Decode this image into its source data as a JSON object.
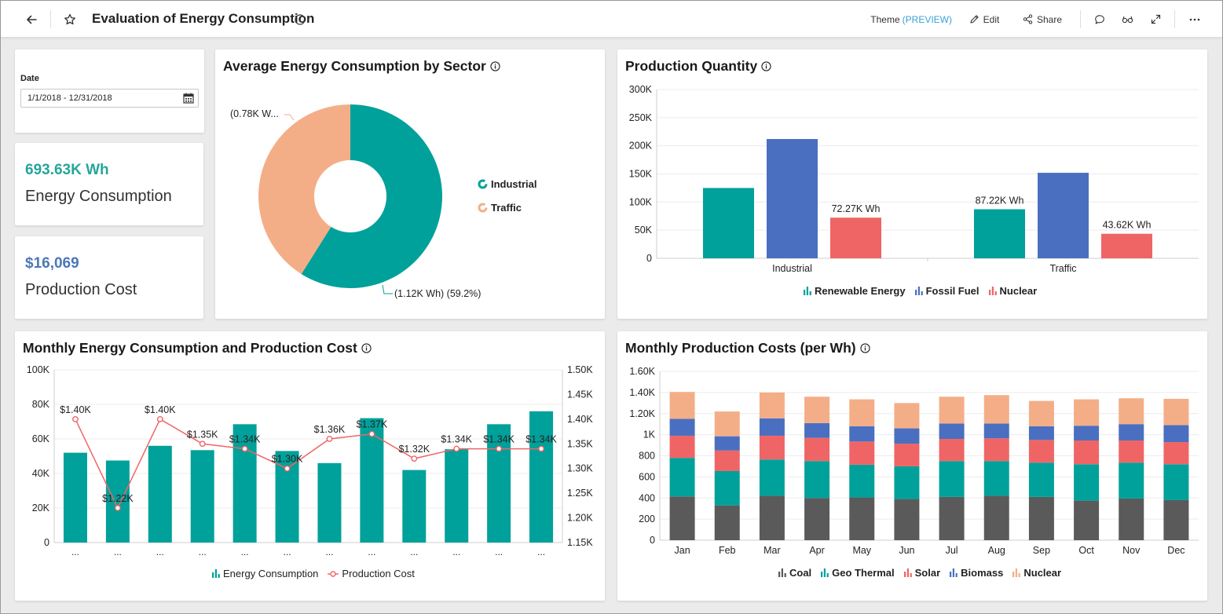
{
  "header": {
    "title": "Evaluation of Energy Consumption",
    "theme_label": "Theme",
    "theme_badge": "(PREVIEW)",
    "edit_label": "Edit",
    "share_label": "Share"
  },
  "date_filter": {
    "label": "Date",
    "value": "1/1/2018 - 12/31/2018"
  },
  "kpi_energy": {
    "value": "693.63K Wh",
    "label": "Energy Consumption",
    "color": "#26a69a"
  },
  "kpi_cost": {
    "value": "$16,069",
    "label": "Production Cost",
    "color": "#4a78b8"
  },
  "colors": {
    "teal": "#00a19a",
    "peach": "#f4ae87",
    "blue": "#4a6fc0",
    "red": "#ef6565",
    "gray": "#5a5a5a"
  },
  "donut_card": {
    "title": "Average Energy Consumption by Sector",
    "label_traffic": "(0.78K W...",
    "label_industrial": "(1.12K Wh) (59.2%)"
  },
  "production_card": {
    "title": "Production Quantity"
  },
  "monthly_card": {
    "title": "Monthly Energy Consumption and Production Cost"
  },
  "costs_card": {
    "title": "Monthly Production Costs (per Wh)"
  },
  "chart_data": [
    {
      "type": "pie",
      "title": "Average Energy Consumption by Sector",
      "donut": true,
      "categories": [
        "Industrial",
        "Traffic"
      ],
      "values": [
        1.12,
        0.78
      ],
      "value_unit": "K Wh",
      "percent_shown": {
        "Industrial": 59.2
      },
      "slice_colors": [
        "#00a19a",
        "#f4ae87"
      ],
      "legend": "right"
    },
    {
      "type": "bar",
      "title": "Production Quantity",
      "categories": [
        "Industrial",
        "Traffic"
      ],
      "series": [
        {
          "name": "Renewable Energy",
          "values": [
            125000,
            87220
          ],
          "color": "#00a19a",
          "labels": [
            "",
            "87.22K Wh"
          ]
        },
        {
          "name": "Fossil Fuel",
          "values": [
            212000,
            152000
          ],
          "color": "#4a6fc0",
          "labels": [
            "",
            ""
          ]
        },
        {
          "name": "Nuclear",
          "values": [
            72270,
            43620
          ],
          "color": "#ef6565",
          "labels": [
            "72.27K Wh",
            "43.62K Wh"
          ]
        }
      ],
      "ylim": [
        0,
        300000
      ],
      "yticks": [
        "0",
        "50K",
        "100K",
        "150K",
        "200K",
        "250K",
        "300K"
      ],
      "grid": true,
      "legend": "bottom"
    },
    {
      "type": "bar",
      "title": "Monthly Energy Consumption and Production Cost",
      "x_tick_labels": [
        "...",
        "...",
        "...",
        "...",
        "...",
        "...",
        "...",
        "...",
        "...",
        "...",
        "...",
        "..."
      ],
      "series": [
        {
          "name": "Energy Consumption",
          "chart": "bar",
          "axis": "left",
          "color": "#00a19a",
          "values": [
            52000,
            47500,
            56000,
            53500,
            68500,
            53000,
            46000,
            72000,
            42000,
            54000,
            68500,
            76000
          ]
        },
        {
          "name": "Production Cost",
          "chart": "line",
          "axis": "right",
          "color": "#ef6565",
          "values": [
            1.4,
            1.22,
            1.4,
            1.35,
            1.34,
            1.3,
            1.36,
            1.37,
            1.32,
            1.34,
            1.34,
            1.34
          ],
          "labels": [
            "$1.40K",
            "$1.22K",
            "$1.40K",
            "$1.35K",
            "$1.34K",
            "$1.30K",
            "$1.36K",
            "$1.37K",
            "$1.32K",
            "$1.34K",
            "$1.34K",
            "$1.34K"
          ]
        }
      ],
      "ylim_left": [
        0,
        100000
      ],
      "yticks_left": [
        "0",
        "20K",
        "40K",
        "60K",
        "80K",
        "100K"
      ],
      "ylim_right": [
        1.15,
        1.5
      ],
      "yticks_right": [
        "1.15K",
        "1.20K",
        "1.25K",
        "1.30K",
        "1.35K",
        "1.40K",
        "1.45K",
        "1.50K"
      ],
      "grid": true,
      "legend": "bottom"
    },
    {
      "type": "bar",
      "stacked": true,
      "title": "Monthly Production Costs (per Wh)",
      "categories": [
        "Jan",
        "Feb",
        "Mar",
        "Apr",
        "May",
        "Jun",
        "Jul",
        "Aug",
        "Sep",
        "Oct",
        "Nov",
        "Dec"
      ],
      "series": [
        {
          "name": "Coal",
          "color": "#5a5a5a",
          "values": [
            415,
            330,
            420,
            400,
            405,
            390,
            410,
            420,
            410,
            375,
            395,
            380
          ]
        },
        {
          "name": "Geo Thermal",
          "color": "#00a19a",
          "values": [
            365,
            325,
            345,
            350,
            310,
            310,
            340,
            330,
            325,
            345,
            340,
            340
          ]
        },
        {
          "name": "Solar",
          "color": "#ef6565",
          "values": [
            210,
            195,
            225,
            220,
            220,
            215,
            210,
            215,
            215,
            225,
            210,
            210
          ]
        },
        {
          "name": "Biomass",
          "color": "#4a6fc0",
          "values": [
            160,
            135,
            165,
            140,
            145,
            145,
            145,
            140,
            130,
            140,
            155,
            160
          ]
        },
        {
          "name": "Nuclear",
          "color": "#f4ae87",
          "values": [
            255,
            235,
            245,
            250,
            255,
            240,
            255,
            270,
            240,
            250,
            245,
            250
          ]
        }
      ],
      "ylim": [
        0,
        1600
      ],
      "yticks": [
        "0",
        "200",
        "400",
        "600",
        "800",
        "1K",
        "1.20K",
        "1.40K",
        "1.60K"
      ],
      "grid": true,
      "legend": "bottom"
    }
  ]
}
